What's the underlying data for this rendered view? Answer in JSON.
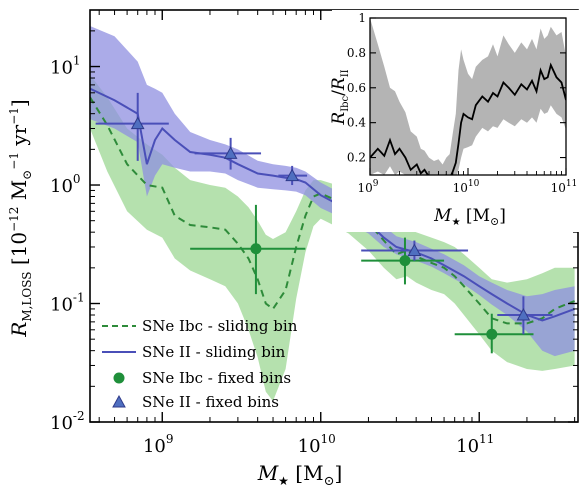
{
  "chart_data": [
    {
      "type": "line",
      "scale": {
        "x": "log",
        "y": "log"
      },
      "xlim": [
        350000000.0,
        420000000000.0
      ],
      "ylim": [
        0.01,
        30
      ],
      "x_ticks": [
        {
          "value": 1000000000.0,
          "base": "10",
          "exp": "9"
        },
        {
          "value": 10000000000.0,
          "base": "10",
          "exp": "10"
        },
        {
          "value": 100000000000.0,
          "base": "10",
          "exp": "11"
        }
      ],
      "y_ticks": [
        {
          "value": 0.01,
          "base": "10",
          "exp": "-2"
        },
        {
          "value": 0.1,
          "base": "10",
          "exp": "-1"
        },
        {
          "value": 1,
          "base": "10",
          "exp": "0"
        },
        {
          "value": 10,
          "base": "10",
          "exp": "1"
        }
      ],
      "xlabel": {
        "sym": "M",
        "sub": "★",
        "unit": "[M",
        "unit_sub": "⊙",
        "close": "]"
      },
      "ylabel": {
        "sym": "R",
        "sub": "M,LOSS",
        "unit": "[10",
        "exp1": "−12",
        "mid": " M",
        "sub2": "⊙",
        "exp2": "−1",
        "tail": " yr",
        "exp3": "−1",
        "close": "]"
      },
      "grid": false,
      "legend_position": "bottom-left",
      "colors": {
        "ibc_line": "#2e8b3a",
        "ibc_band": "#a8dca0",
        "ii_line": "#4a4fb8",
        "ii_band": "#8f8fe0",
        "ii_band_overlap": "#5f7fc8",
        "ibc_marker": "#1f8f3a",
        "ii_marker": "#4f6fc0"
      },
      "series": [
        {
          "name": "SNe Ibc - sliding bin",
          "style": "dashed",
          "x": [
            350000000.0,
            450000000.0,
            600000000.0,
            800000000.0,
            1000000000.0,
            1200000000.0,
            1500000000.0,
            2000000000.0,
            2500000000.0,
            3000000000.0,
            3500000000.0,
            4000000000.0,
            4500000000.0,
            5000000000.0,
            6000000000.0,
            7000000000.0,
            8000000000.0,
            9000000000.0,
            10000000000.0,
            12000000000.0,
            15000000000.0,
            20000000000.0,
            25000000000.0,
            30000000000.0,
            35000000000.0,
            40000000000.0,
            50000000000.0,
            60000000000.0,
            70000000000.0,
            80000000000.0,
            100000000000.0,
            120000000000.0,
            150000000000.0,
            200000000000.0,
            250000000000.0,
            300000000000.0,
            400000000000.0
          ],
          "y": [
            5.5,
            3.2,
            1.5,
            1.0,
            0.95,
            0.55,
            0.46,
            0.44,
            0.42,
            0.32,
            0.24,
            0.16,
            0.1,
            0.09,
            0.13,
            0.3,
            0.55,
            0.8,
            0.85,
            0.76,
            0.66,
            0.48,
            0.34,
            0.26,
            0.28,
            0.25,
            0.22,
            0.2,
            0.17,
            0.14,
            0.1,
            0.075,
            0.068,
            0.068,
            0.075,
            0.09,
            0.105
          ],
          "band_low": [
            3.0,
            1.3,
            0.6,
            0.42,
            0.36,
            0.24,
            0.19,
            0.16,
            0.14,
            0.1,
            0.06,
            0.035,
            0.018,
            0.015,
            0.028,
            0.11,
            0.27,
            0.45,
            0.52,
            0.46,
            0.39,
            0.28,
            0.2,
            0.16,
            0.17,
            0.15,
            0.13,
            0.12,
            0.1,
            0.08,
            0.055,
            0.04,
            0.032,
            0.028,
            0.027,
            0.028,
            0.03
          ],
          "band_high": [
            8.5,
            5.5,
            3.0,
            2.2,
            1.8,
            1.4,
            1.1,
            1.0,
            0.95,
            0.8,
            0.65,
            0.5,
            0.38,
            0.35,
            0.4,
            0.6,
            0.9,
            1.1,
            1.1,
            1.02,
            0.92,
            0.76,
            0.56,
            0.44,
            0.43,
            0.4,
            0.36,
            0.33,
            0.3,
            0.26,
            0.2,
            0.16,
            0.15,
            0.16,
            0.18,
            0.2,
            0.2
          ]
        },
        {
          "name": "SNe II  - sliding bin",
          "style": "solid",
          "x": [
            350000000.0,
            500000000.0,
            700000000.0,
            800000000.0,
            900000000.0,
            1000000000.0,
            1200000000.0,
            1500000000.0,
            2000000000.0,
            2500000000.0,
            3000000000.0,
            4000000000.0,
            5000000000.0,
            6000000000.0,
            7000000000.0,
            8000000000.0,
            10000000000.0,
            12000000000.0,
            15000000000.0,
            20000000000.0,
            25000000000.0,
            30000000000.0,
            40000000000.0,
            50000000000.0,
            60000000000.0,
            80000000000.0,
            100000000000.0,
            120000000000.0,
            150000000000.0,
            200000000000.0,
            250000000000.0,
            300000000000.0,
            400000000000.0
          ],
          "y": [
            6.5,
            5.2,
            4.0,
            1.5,
            2.4,
            3.0,
            2.4,
            1.9,
            1.8,
            1.7,
            1.5,
            1.25,
            1.2,
            1.15,
            1.12,
            1.05,
            0.82,
            0.72,
            0.6,
            0.48,
            0.36,
            0.3,
            0.27,
            0.24,
            0.21,
            0.17,
            0.14,
            0.12,
            0.1,
            0.08,
            0.072,
            0.078,
            0.09
          ],
          "band_low": [
            3.6,
            3.0,
            2.3,
            0.8,
            1.2,
            1.5,
            1.4,
            1.3,
            1.3,
            1.25,
            1.1,
            0.95,
            0.92,
            0.9,
            0.88,
            0.82,
            0.64,
            0.57,
            0.48,
            0.39,
            0.3,
            0.26,
            0.23,
            0.205,
            0.18,
            0.145,
            0.118,
            0.098,
            0.08,
            0.058,
            0.04,
            0.036,
            0.04
          ],
          "band_high": [
            22,
            18,
            11,
            7,
            6.5,
            6.0,
            4.0,
            2.8,
            2.4,
            2.2,
            2.0,
            1.6,
            1.5,
            1.45,
            1.4,
            1.3,
            1.05,
            0.92,
            0.76,
            0.6,
            0.45,
            0.37,
            0.33,
            0.29,
            0.26,
            0.21,
            0.17,
            0.15,
            0.13,
            0.115,
            0.12,
            0.13,
            0.14
          ]
        },
        {
          "name": "SNe Ibc - fixed bins",
          "style": "points",
          "points": [
            {
              "x": 3900000000.0,
              "y": 0.29,
              "xlo": 1500000000.0,
              "xhi": 8000000000.0,
              "ylo": 0.12,
              "yhi": 0.68
            },
            {
              "x": 34000000000.0,
              "y": 0.23,
              "xlo": 18000000000.0,
              "xhi": 60000000000.0,
              "ylo": 0.145,
              "yhi": 0.36
            },
            {
              "x": 120000000000.0,
              "y": 0.055,
              "xlo": 70000000000.0,
              "xhi": 220000000000.0,
              "ylo": 0.038,
              "yhi": 0.082
            }
          ]
        },
        {
          "name": "SNe II  - fixed bins",
          "style": "points",
          "points": [
            {
              "x": 700000000.0,
              "y": 3.3,
              "xlo": 380000000.0,
              "xhi": 1100000000.0,
              "ylo": 1.6,
              "yhi": 6.0
            },
            {
              "x": 2700000000.0,
              "y": 1.85,
              "xlo": 1600000000.0,
              "xhi": 4200000000.0,
              "ylo": 1.35,
              "yhi": 2.5
            },
            {
              "x": 6600000000.0,
              "y": 1.2,
              "xlo": 5400000000.0,
              "xhi": 8200000000.0,
              "ylo": 1.0,
              "yhi": 1.45
            },
            {
              "x": 39000000000.0,
              "y": 0.28,
              "xlo": 18000000000.0,
              "xhi": 85000000000.0,
              "ylo": 0.23,
              "yhi": 0.34
            },
            {
              "x": 190000000000.0,
              "y": 0.08,
              "xlo": 130000000000.0,
              "xhi": 290000000000.0,
              "ylo": 0.055,
              "yhi": 0.115
            }
          ]
        }
      ]
    },
    {
      "type": "line",
      "inset": true,
      "scale": {
        "x": "log",
        "y": "linear"
      },
      "xlim": [
        1000000000.0,
        100000000000.0
      ],
      "ylim": [
        0.1,
        1.0
      ],
      "x_ticks": [
        {
          "value": 1000000000.0,
          "base": "10",
          "exp": "9"
        },
        {
          "value": 10000000000.0,
          "base": "10",
          "exp": "10"
        },
        {
          "value": 100000000000.0,
          "base": "10",
          "exp": "11"
        }
      ],
      "y_ticks": [
        "1",
        "0.8",
        "0.6",
        "0.4",
        "0.2"
      ],
      "y_tick_values": [
        1.0,
        0.8,
        0.6,
        0.4,
        0.2
      ],
      "xlabel": {
        "sym": "M",
        "sub": "★",
        "unit": "[M",
        "unit_sub": "⊙",
        "close": "]"
      },
      "ylabel": {
        "sym": "R",
        "sub": "Ibc",
        "slash": "/",
        "sym2": "R",
        "sub2": "II"
      },
      "colors": {
        "line": "#000000",
        "band": "#b4b4b4"
      },
      "series": [
        {
          "x": [
            1000000000.0,
            1200000000.0,
            1400000000.0,
            1600000000.0,
            1800000000.0,
            2000000000.0,
            2300000000.0,
            2600000000.0,
            3000000000.0,
            3300000000.0,
            3600000000.0,
            4000000000.0,
            4500000000.0,
            5000000000.0,
            5500000000.0,
            6000000000.0,
            6500000000.0,
            7000000000.0,
            7500000000.0,
            8000000000.0,
            8500000000.0,
            9000000000.0,
            10000000000.0,
            11000000000.0,
            12000000000.0,
            14000000000.0,
            16000000000.0,
            18000000000.0,
            20000000000.0,
            23000000000.0,
            26000000000.0,
            30000000000.0,
            35000000000.0,
            40000000000.0,
            45000000000.0,
            50000000000.0,
            55000000000.0,
            60000000000.0,
            65000000000.0,
            70000000000.0,
            80000000000.0,
            90000000000.0,
            100000000000.0
          ],
          "y": [
            0.2,
            0.25,
            0.21,
            0.3,
            0.22,
            0.25,
            0.2,
            0.13,
            0.16,
            0.11,
            0.13,
            0.09,
            0.08,
            0.1,
            0.07,
            0.1,
            0.08,
            0.12,
            0.17,
            0.28,
            0.4,
            0.45,
            0.43,
            0.42,
            0.5,
            0.55,
            0.52,
            0.57,
            0.55,
            0.63,
            0.6,
            0.56,
            0.62,
            0.59,
            0.64,
            0.58,
            0.7,
            0.65,
            0.66,
            0.73,
            0.66,
            0.63,
            0.53
          ],
          "band_low": [
            0.1,
            0.12,
            0.1,
            0.15,
            0.1,
            0.12,
            0.1,
            0.07,
            0.08,
            0.06,
            0.07,
            0.05,
            0.04,
            0.06,
            0.04,
            0.06,
            0.05,
            0.06,
            0.08,
            0.13,
            0.2,
            0.25,
            0.26,
            0.27,
            0.32,
            0.37,
            0.35,
            0.38,
            0.37,
            0.42,
            0.4,
            0.38,
            0.42,
            0.4,
            0.43,
            0.4,
            0.48,
            0.45,
            0.46,
            0.5,
            0.45,
            0.43,
            0.36
          ],
          "band_high": [
            1.0,
            0.85,
            0.72,
            0.6,
            0.58,
            0.52,
            0.46,
            0.35,
            0.32,
            0.25,
            0.24,
            0.2,
            0.18,
            0.19,
            0.16,
            0.2,
            0.22,
            0.34,
            0.45,
            0.7,
            0.82,
            0.76,
            0.68,
            0.65,
            0.72,
            0.76,
            0.78,
            0.85,
            0.78,
            0.9,
            0.85,
            0.8,
            0.86,
            0.82,
            0.88,
            0.82,
            0.94,
            0.88,
            0.9,
            0.95,
            0.9,
            0.92,
            0.78
          ]
        }
      ]
    }
  ]
}
